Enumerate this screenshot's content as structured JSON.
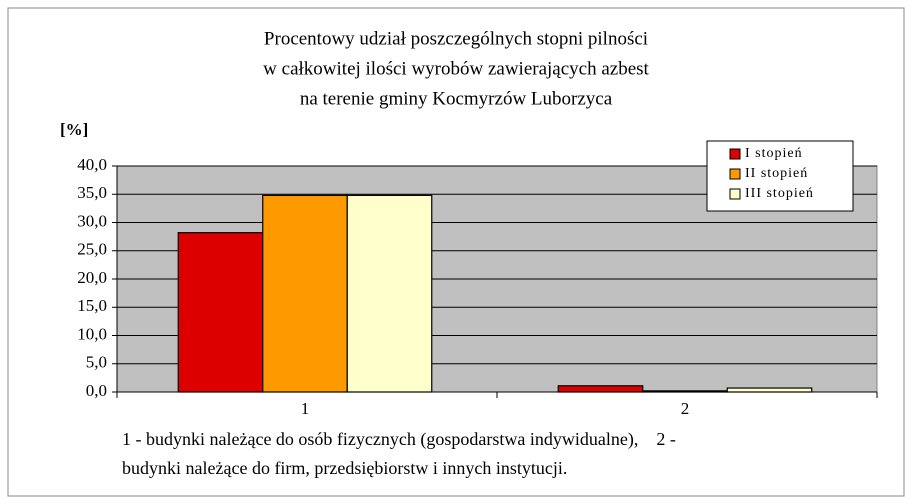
{
  "chart_data": {
    "type": "bar",
    "title": [
      "Procentowy udział poszczególnych stopni pilności",
      "w całkowitej ilości wyrobów zawierających azbest",
      "na terenie gminy Kocmyrzów Luborzyca"
    ],
    "ylabel": "[%]",
    "categories": [
      "1",
      "2"
    ],
    "series": [
      {
        "name": "I stopień",
        "color": "#dd0000",
        "values": [
          28.2,
          1.1
        ]
      },
      {
        "name": "II stopień",
        "color": "#ff9900",
        "values": [
          34.8,
          0.2
        ]
      },
      {
        "name": "III stopień",
        "color": "#ffffcc",
        "values": [
          34.8,
          0.7
        ]
      }
    ],
    "ylim": [
      0,
      40
    ],
    "yticks": [
      {
        "value": 0,
        "label": "0,0"
      },
      {
        "value": 5,
        "label": "5,0"
      },
      {
        "value": 10,
        "label": "10,0"
      },
      {
        "value": 15,
        "label": "15,0"
      },
      {
        "value": 20,
        "label": "20,0"
      },
      {
        "value": 25,
        "label": "25,0"
      },
      {
        "value": 30,
        "label": "30,0"
      },
      {
        "value": 35,
        "label": "35,0"
      },
      {
        "value": 40,
        "label": "40,0"
      }
    ],
    "grid": true,
    "legend": "top-right",
    "notes": [
      "1 - budynki należące do osób fizycznych (gospodarstwa indywidualne),    2 -",
      "budynki należące do firm, przedsiębiorstw i innych instytucji."
    ]
  }
}
